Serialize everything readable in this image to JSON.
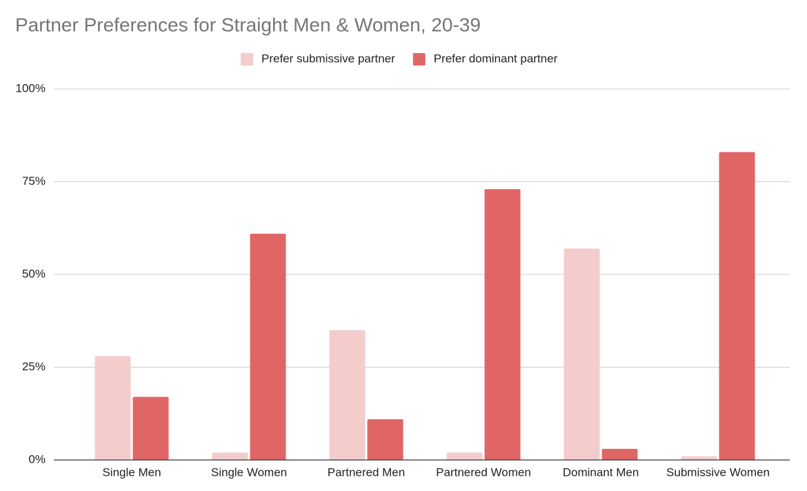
{
  "chart_data": {
    "type": "bar",
    "title": "Partner Preferences for Straight Men & Women, 20-39",
    "categories": [
      "Single Men",
      "Single Women",
      "Partnered Men",
      "Partnered Women",
      "Dominant Men",
      "Submissive Women"
    ],
    "series": [
      {
        "name": "Prefer submissive partner",
        "color": "#f4cccc",
        "values": [
          28,
          2,
          35,
          2,
          57,
          1
        ]
      },
      {
        "name": "Prefer dominant partner",
        "color": "#e06666",
        "values": [
          17,
          61,
          11,
          73,
          3,
          83
        ]
      }
    ],
    "ylim": [
      0,
      100
    ],
    "yticks": [
      {
        "value": 0,
        "label": "0%"
      },
      {
        "value": 25,
        "label": "25%"
      },
      {
        "value": 50,
        "label": "50%"
      },
      {
        "value": 75,
        "label": "75%"
      },
      {
        "value": 100,
        "label": "100%"
      }
    ],
    "grid": true,
    "legend": "top"
  }
}
